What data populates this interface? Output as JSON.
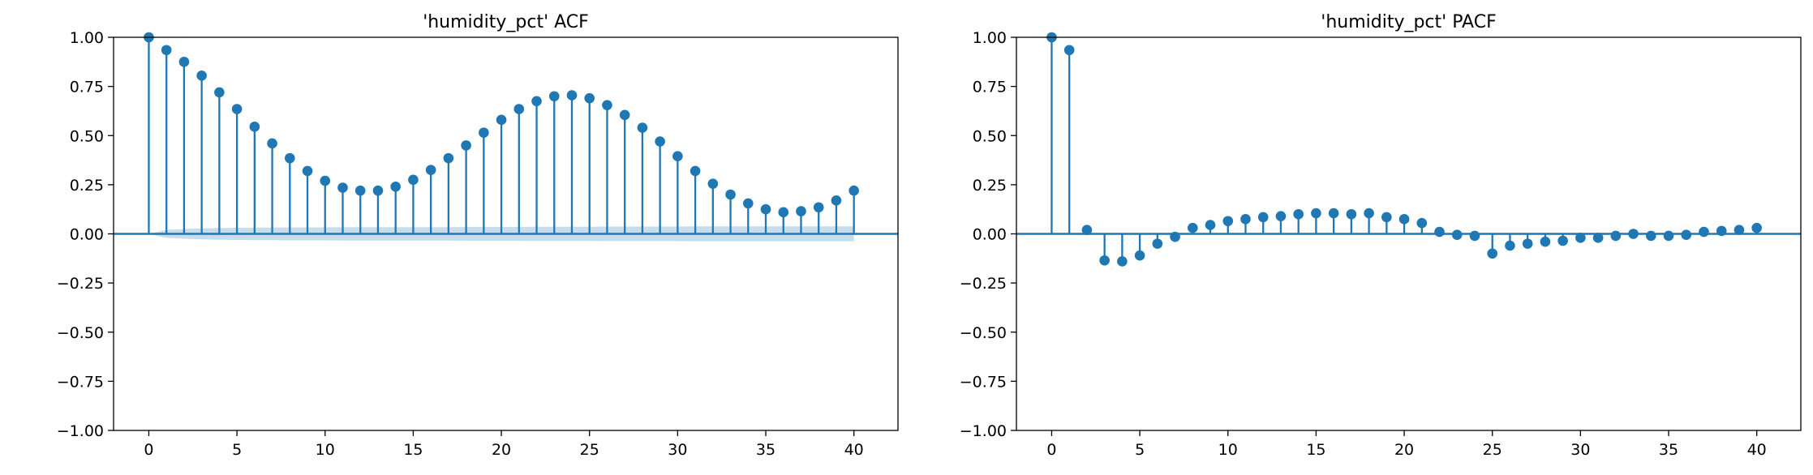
{
  "chart_data": [
    {
      "type": "stem",
      "title": "'humidity_pct' ACF",
      "xlabel": "",
      "ylabel": "",
      "xlim": [
        -2,
        42.5
      ],
      "ylim": [
        -1.0,
        1.0
      ],
      "x_ticks": [
        0,
        5,
        10,
        15,
        20,
        25,
        30,
        35,
        40
      ],
      "y_ticks": [
        -1.0,
        -0.75,
        -0.5,
        -0.25,
        0.0,
        0.25,
        0.5,
        0.75,
        1.0
      ],
      "x_tick_labels": [
        "0",
        "5",
        "10",
        "15",
        "20",
        "25",
        "30",
        "35",
        "40"
      ],
      "y_tick_labels": [
        "−1.00",
        "−0.75",
        "−0.50",
        "−0.25",
        "0.00",
        "0.25",
        "0.50",
        "0.75",
        "1.00"
      ],
      "lags": [
        0,
        1,
        2,
        3,
        4,
        5,
        6,
        7,
        8,
        9,
        10,
        11,
        12,
        13,
        14,
        15,
        16,
        17,
        18,
        19,
        20,
        21,
        22,
        23,
        24,
        25,
        26,
        27,
        28,
        29,
        30,
        31,
        32,
        33,
        34,
        35,
        36,
        37,
        38,
        39,
        40
      ],
      "values": [
        1.0,
        0.935,
        0.875,
        0.805,
        0.72,
        0.635,
        0.545,
        0.46,
        0.385,
        0.32,
        0.27,
        0.235,
        0.22,
        0.22,
        0.24,
        0.275,
        0.325,
        0.385,
        0.45,
        0.515,
        0.58,
        0.635,
        0.675,
        0.7,
        0.705,
        0.69,
        0.655,
        0.605,
        0.54,
        0.47,
        0.395,
        0.32,
        0.255,
        0.2,
        0.155,
        0.125,
        0.11,
        0.115,
        0.135,
        0.17,
        0.22
      ],
      "confidence_band": {
        "lags": [
          0,
          1,
          2,
          3,
          4,
          5,
          6,
          7,
          8,
          9,
          10,
          11,
          12,
          13,
          14,
          15,
          16,
          17,
          18,
          19,
          20,
          21,
          22,
          23,
          24,
          25,
          26,
          27,
          28,
          29,
          30,
          31,
          32,
          33,
          34,
          35,
          36,
          37,
          38,
          39,
          40
        ],
        "upper": [
          0.0,
          0.02,
          0.025,
          0.028,
          0.03,
          0.031,
          0.032,
          0.032,
          0.033,
          0.033,
          0.033,
          0.034,
          0.034,
          0.034,
          0.034,
          0.034,
          0.034,
          0.034,
          0.035,
          0.035,
          0.035,
          0.035,
          0.036,
          0.036,
          0.036,
          0.036,
          0.037,
          0.037,
          0.037,
          0.037,
          0.037,
          0.038,
          0.038,
          0.038,
          0.038,
          0.038,
          0.038,
          0.038,
          0.038,
          0.038,
          0.038
        ],
        "lower": [
          0.0,
          -0.02,
          -0.025,
          -0.028,
          -0.03,
          -0.031,
          -0.032,
          -0.032,
          -0.033,
          -0.033,
          -0.033,
          -0.034,
          -0.034,
          -0.034,
          -0.034,
          -0.034,
          -0.034,
          -0.034,
          -0.035,
          -0.035,
          -0.035,
          -0.035,
          -0.036,
          -0.036,
          -0.036,
          -0.036,
          -0.037,
          -0.037,
          -0.037,
          -0.037,
          -0.037,
          -0.038,
          -0.038,
          -0.038,
          -0.038,
          -0.038,
          -0.038,
          -0.038,
          -0.038,
          -0.038,
          -0.038
        ]
      },
      "grid": false,
      "color": "#1f77b4"
    },
    {
      "type": "stem",
      "title": "'humidity_pct' PACF",
      "xlabel": "",
      "ylabel": "",
      "xlim": [
        -2,
        42.5
      ],
      "ylim": [
        -1.0,
        1.0
      ],
      "x_ticks": [
        0,
        5,
        10,
        15,
        20,
        25,
        30,
        35,
        40
      ],
      "y_ticks": [
        -1.0,
        -0.75,
        -0.5,
        -0.25,
        0.0,
        0.25,
        0.5,
        0.75,
        1.0
      ],
      "x_tick_labels": [
        "0",
        "5",
        "10",
        "15",
        "20",
        "25",
        "30",
        "35",
        "40"
      ],
      "y_tick_labels": [
        "−1.00",
        "−0.75",
        "−0.50",
        "−0.25",
        "0.00",
        "0.25",
        "0.50",
        "0.75",
        "1.00"
      ],
      "lags": [
        0,
        1,
        2,
        3,
        4,
        5,
        6,
        7,
        8,
        9,
        10,
        11,
        12,
        13,
        14,
        15,
        16,
        17,
        18,
        19,
        20,
        21,
        22,
        23,
        24,
        25,
        26,
        27,
        28,
        29,
        30,
        31,
        32,
        33,
        34,
        35,
        36,
        37,
        38,
        39,
        40
      ],
      "values": [
        1.0,
        0.935,
        0.02,
        -0.135,
        -0.14,
        -0.11,
        -0.05,
        -0.015,
        0.03,
        0.045,
        0.065,
        0.075,
        0.085,
        0.09,
        0.1,
        0.105,
        0.105,
        0.1,
        0.105,
        0.085,
        0.075,
        0.055,
        0.01,
        -0.005,
        -0.01,
        -0.1,
        -0.06,
        -0.05,
        -0.04,
        -0.035,
        -0.02,
        -0.02,
        -0.01,
        0.0,
        -0.01,
        -0.01,
        -0.005,
        0.01,
        0.015,
        0.02,
        0.03
      ],
      "confidence_band": null,
      "grid": false,
      "color": "#1f77b4"
    }
  ]
}
